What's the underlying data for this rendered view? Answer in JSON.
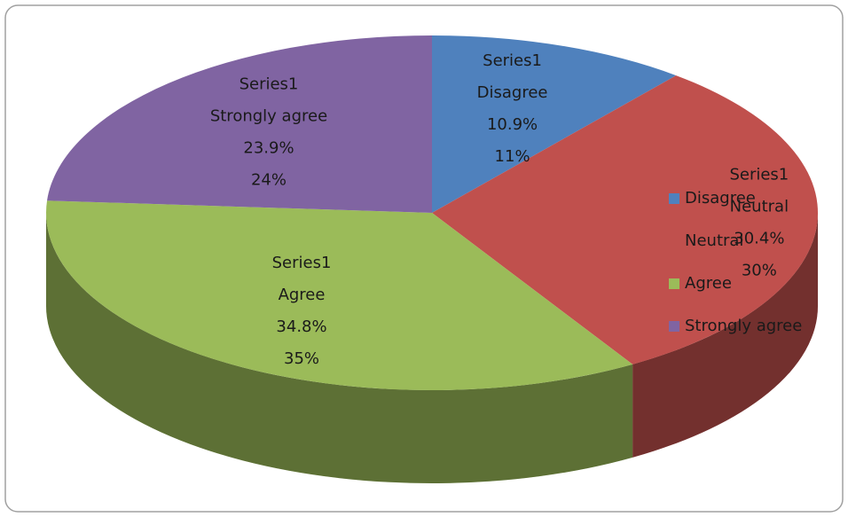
{
  "chart_data": {
    "type": "pie",
    "categories": [
      "Disagree",
      "Neutral",
      "Agree",
      "Strongly agree"
    ],
    "series": [
      {
        "name": "Series1",
        "colors": [
          "#4f81bd",
          "#c0504d",
          "#9bbb59",
          "#8064a2"
        ],
        "values": [
          10.9,
          30.4,
          34.8,
          23.9
        ],
        "value_labels": [
          [
            "10.9%",
            "11%"
          ],
          [
            "30.4%",
            "30%"
          ],
          [
            "34.8%",
            "35%"
          ],
          [
            "23.9%",
            "24%"
          ]
        ]
      }
    ],
    "legend": "right"
  }
}
